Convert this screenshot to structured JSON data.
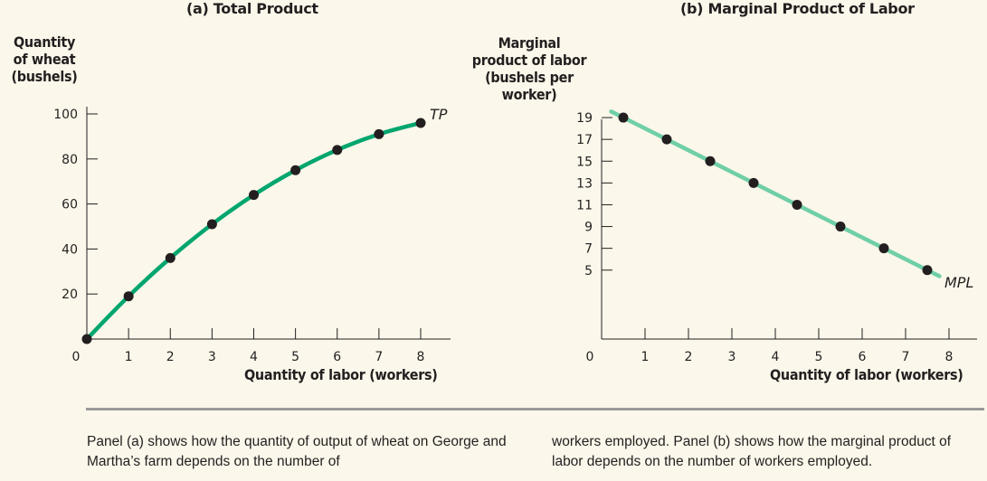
{
  "chart_data": [
    {
      "type": "line",
      "title": "(a) Total Product",
      "ylabel": "Quantity of wheat (bushels)",
      "ylabel_lines": [
        "Quantity",
        "of wheat",
        "(bushels)"
      ],
      "xlabel": "Quantity of labor (workers)",
      "xlim": [
        0,
        8
      ],
      "ylim": [
        0,
        100
      ],
      "x_ticks": [
        1,
        2,
        3,
        4,
        5,
        6,
        7,
        8
      ],
      "y_ticks": [
        20,
        40,
        60,
        80,
        100
      ],
      "origin_label": "0",
      "grid": false,
      "series": [
        {
          "name": "TP",
          "color": "#00a66e",
          "x": [
            0,
            1,
            2,
            3,
            4,
            5,
            6,
            7,
            8
          ],
          "y": [
            0,
            19,
            36,
            51,
            64,
            75,
            84,
            91,
            96
          ]
        }
      ]
    },
    {
      "type": "line",
      "title": "(b) Marginal Product of Labor",
      "ylabel": "Marginal product of labor (bushels per worker)",
      "ylabel_lines": [
        "Marginal",
        "product of labor",
        "(bushels per",
        "worker)"
      ],
      "xlabel": "Quantity of labor (workers)",
      "xlim": [
        0,
        8
      ],
      "ylim": [
        0,
        20
      ],
      "x_ticks": [
        1,
        2,
        3,
        4,
        5,
        6,
        7,
        8
      ],
      "y_ticks": [
        5,
        7,
        9,
        11,
        13,
        15,
        17,
        19
      ],
      "origin_label": "0",
      "grid": false,
      "series": [
        {
          "name": "MPL",
          "color": "#6fcfa6",
          "x": [
            0.5,
            1.5,
            2.5,
            3.5,
            4.5,
            5.5,
            6.5,
            7.5
          ],
          "y": [
            19,
            17,
            15,
            13,
            11,
            9,
            7,
            5
          ]
        }
      ]
    }
  ],
  "caption": {
    "left": "Panel (a) shows how the quantity of output of wheat on George and Martha’s farm depends on the number of",
    "right": "workers employed. Panel (b) shows how the marginal product of labor depends on the number of workers employed."
  }
}
